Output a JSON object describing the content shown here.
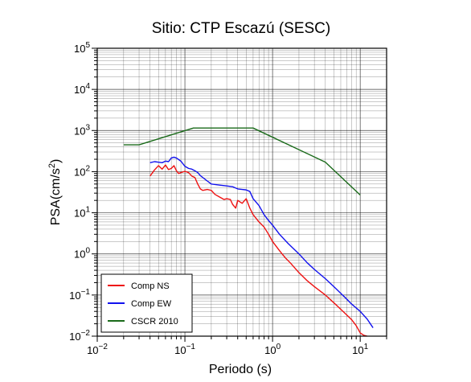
{
  "chart_data": {
    "type": "line",
    "title": "Sitio: CTP Escazú (SESC)",
    "xlabel": "Periodo (s)",
    "ylabel": {
      "base": "PSA(cm/s",
      "sup": "2",
      "close": ")"
    },
    "x_scale": "log",
    "y_scale": "log",
    "xlim": [
      0.01,
      20
    ],
    "ylim": [
      0.01,
      100000
    ],
    "grid": true,
    "legend_position": "bottom-left",
    "x_ticks": [
      {
        "base": "10",
        "exp": "−2",
        "value": 0.01
      },
      {
        "base": "10",
        "exp": "−1",
        "value": 0.1
      },
      {
        "base": "10",
        "exp": "0",
        "value": 1
      },
      {
        "base": "10",
        "exp": "1",
        "value": 10
      }
    ],
    "y_ticks": [
      {
        "base": "10",
        "exp": "−2",
        "value": 0.01
      },
      {
        "base": "10",
        "exp": "−1",
        "value": 0.1
      },
      {
        "base": "10",
        "exp": "0",
        "value": 1
      },
      {
        "base": "10",
        "exp": "1",
        "value": 10
      },
      {
        "base": "10",
        "exp": "2",
        "value": 100
      },
      {
        "base": "10",
        "exp": "3",
        "value": 1000
      },
      {
        "base": "10",
        "exp": "4",
        "value": 10000
      },
      {
        "base": "10",
        "exp": "5",
        "value": 100000
      }
    ],
    "series": [
      {
        "name": "Comp NS",
        "color": "#ee1111",
        "points": [
          [
            0.04,
            78
          ],
          [
            0.045,
            110
          ],
          [
            0.05,
            140
          ],
          [
            0.055,
            115
          ],
          [
            0.06,
            145
          ],
          [
            0.065,
            112
          ],
          [
            0.07,
            120
          ],
          [
            0.075,
            140
          ],
          [
            0.08,
            105
          ],
          [
            0.085,
            90
          ],
          [
            0.09,
            95
          ],
          [
            0.1,
            102
          ],
          [
            0.11,
            95
          ],
          [
            0.12,
            78
          ],
          [
            0.13,
            72
          ],
          [
            0.14,
            50
          ],
          [
            0.15,
            38
          ],
          [
            0.16,
            35
          ],
          [
            0.18,
            37
          ],
          [
            0.2,
            35
          ],
          [
            0.22,
            28
          ],
          [
            0.25,
            24
          ],
          [
            0.28,
            21
          ],
          [
            0.3,
            22
          ],
          [
            0.33,
            21
          ],
          [
            0.35,
            16
          ],
          [
            0.38,
            13
          ],
          [
            0.4,
            20
          ],
          [
            0.45,
            17
          ],
          [
            0.5,
            22
          ],
          [
            0.55,
            13
          ],
          [
            0.6,
            9
          ],
          [
            0.7,
            6
          ],
          [
            0.8,
            4.5
          ],
          [
            0.9,
            3
          ],
          [
            1.0,
            2
          ],
          [
            1.2,
            1.2
          ],
          [
            1.4,
            0.8
          ],
          [
            1.6,
            0.6
          ],
          [
            2,
            0.35
          ],
          [
            2.5,
            0.22
          ],
          [
            3,
            0.16
          ],
          [
            4,
            0.1
          ],
          [
            5,
            0.065
          ],
          [
            6,
            0.045
          ],
          [
            7,
            0.033
          ],
          [
            8,
            0.025
          ],
          [
            9,
            0.018
          ],
          [
            10,
            0.012
          ],
          [
            11,
            0.0105
          ],
          [
            12,
            0.01
          ]
        ]
      },
      {
        "name": "Comp EW",
        "color": "#1111ee",
        "points": [
          [
            0.04,
            165
          ],
          [
            0.045,
            175
          ],
          [
            0.05,
            170
          ],
          [
            0.055,
            165
          ],
          [
            0.06,
            180
          ],
          [
            0.065,
            175
          ],
          [
            0.07,
            215
          ],
          [
            0.075,
            225
          ],
          [
            0.08,
            215
          ],
          [
            0.09,
            180
          ],
          [
            0.1,
            135
          ],
          [
            0.11,
            120
          ],
          [
            0.12,
            115
          ],
          [
            0.13,
            105
          ],
          [
            0.14,
            95
          ],
          [
            0.15,
            80
          ],
          [
            0.17,
            65
          ],
          [
            0.2,
            50
          ],
          [
            0.25,
            47
          ],
          [
            0.3,
            45
          ],
          [
            0.35,
            43
          ],
          [
            0.4,
            38
          ],
          [
            0.45,
            37
          ],
          [
            0.5,
            36
          ],
          [
            0.55,
            33
          ],
          [
            0.6,
            22
          ],
          [
            0.7,
            15
          ],
          [
            0.8,
            9
          ],
          [
            0.9,
            6.5
          ],
          [
            1.0,
            5
          ],
          [
            1.2,
            3
          ],
          [
            1.5,
            1.8
          ],
          [
            2,
            1
          ],
          [
            2.5,
            0.6
          ],
          [
            3,
            0.42
          ],
          [
            4,
            0.25
          ],
          [
            5,
            0.16
          ],
          [
            6,
            0.11
          ],
          [
            7,
            0.08
          ],
          [
            8,
            0.06
          ],
          [
            10,
            0.04
          ],
          [
            12,
            0.026
          ],
          [
            14,
            0.016
          ]
        ]
      },
      {
        "name": "CSCR 2010",
        "color": "#1a6a1a",
        "points": [
          [
            0.02,
            450
          ],
          [
            0.03,
            450
          ],
          [
            0.125,
            1150
          ],
          [
            0.6,
            1150
          ],
          [
            4,
            170
          ],
          [
            10,
            27
          ]
        ]
      }
    ]
  }
}
